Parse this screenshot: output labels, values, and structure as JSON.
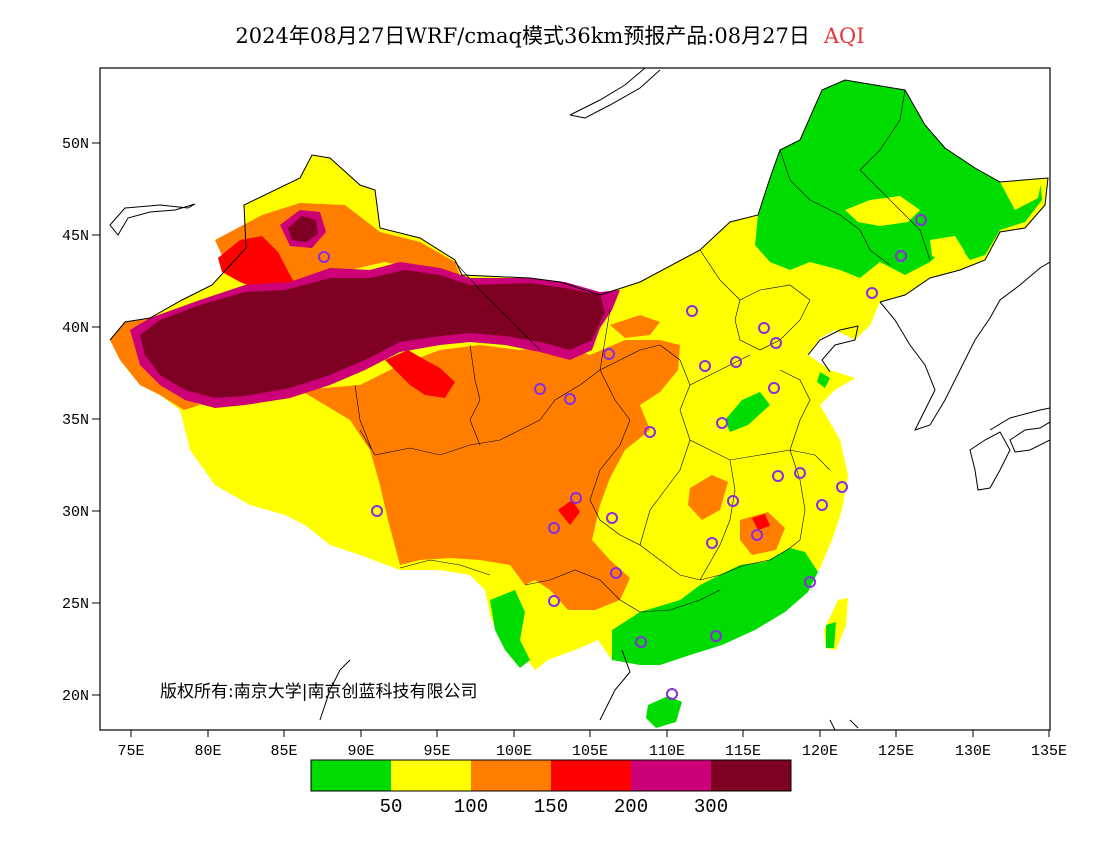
{
  "title": {
    "main": "2024年08月27日WRF/cmaq模式36km预报产品:08月27日",
    "variable": "AQI"
  },
  "axes": {
    "lat_ticks": [
      "50N",
      "45N",
      "40N",
      "35N",
      "30N",
      "25N",
      "20N"
    ],
    "lon_ticks": [
      "75E",
      "80E",
      "85E",
      "90E",
      "95E",
      "100E",
      "105E",
      "110E",
      "115E",
      "120E",
      "125E",
      "130E",
      "135E"
    ],
    "lon_range": [
      73,
      135
    ],
    "lat_range": [
      18,
      54
    ]
  },
  "copyright": "版权所有:南京大学|南京创蓝科技有限公司",
  "legend": {
    "colors": [
      "#00dc00",
      "#ffff00",
      "#ff7e00",
      "#ff0000",
      "#cc0077",
      "#7e0023"
    ],
    "labels": [
      "50",
      "100",
      "150",
      "200",
      "300"
    ]
  },
  "colors": {
    "good": "#00dc00",
    "moderate": "#ffff00",
    "usg": "#ff7e00",
    "unhealthy": "#ff0000",
    "very_unhealthy": "#cc0077",
    "hazardous": "#7e0023",
    "station_marker": "#8b2be2"
  }
}
